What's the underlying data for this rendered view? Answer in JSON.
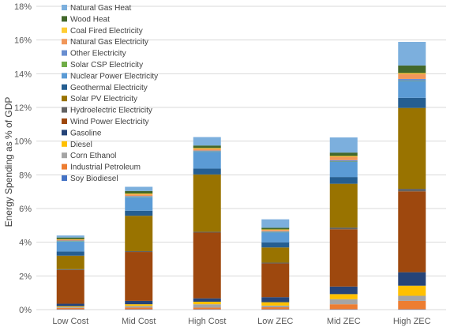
{
  "chart_data": {
    "type": "bar",
    "stacked": true,
    "title": "",
    "xlabel": "",
    "ylabel": "Energy Spending as % of GDP",
    "ylim": [
      0,
      18
    ],
    "yticks": [
      "0%",
      "2%",
      "4%",
      "6%",
      "8%",
      "10%",
      "12%",
      "14%",
      "16%",
      "18%"
    ],
    "grid": true,
    "legend_position": "top-left",
    "categories": [
      "Low Cost",
      "Mid Cost",
      "High Cost",
      "Low ZEC",
      "Mid ZEC",
      "High ZEC"
    ],
    "series": [
      {
        "name": "Soy Biodiesel",
        "color": "#4472C4",
        "values": [
          0.02,
          0.02,
          0.02,
          0.02,
          0.02,
          0.02
        ]
      },
      {
        "name": "Industrial Petroleum",
        "color": "#ED7D31",
        "values": [
          0.08,
          0.1,
          0.1,
          0.12,
          0.3,
          0.5
        ]
      },
      {
        "name": "Corn Ethanol",
        "color": "#A5A5A5",
        "values": [
          0.05,
          0.1,
          0.2,
          0.1,
          0.3,
          0.3
        ]
      },
      {
        "name": "Diesel",
        "color": "#FFC000",
        "values": [
          0.05,
          0.1,
          0.15,
          0.2,
          0.3,
          0.6
        ]
      },
      {
        "name": "Gasoline",
        "color": "#264478",
        "values": [
          0.15,
          0.2,
          0.2,
          0.3,
          0.45,
          0.8
        ]
      },
      {
        "name": "Wind Power Electricity",
        "color": "#9E480E",
        "values": [
          2.0,
          2.9,
          3.9,
          2.0,
          3.4,
          4.8
        ]
      },
      {
        "name": "Hydroelectric Electricity",
        "color": "#636363",
        "values": [
          0.05,
          0.05,
          0.05,
          0.05,
          0.1,
          0.15
        ]
      },
      {
        "name": "Solar PV Electricity",
        "color": "#997300",
        "values": [
          0.8,
          2.1,
          3.4,
          0.9,
          2.6,
          4.8
        ]
      },
      {
        "name": "Geothermal Electricity",
        "color": "#255E91",
        "values": [
          0.25,
          0.3,
          0.35,
          0.3,
          0.4,
          0.6
        ]
      },
      {
        "name": "Nuclear Power Electricity",
        "color": "#5B9BD5",
        "values": [
          0.6,
          0.8,
          1.0,
          0.6,
          0.9,
          1.0
        ]
      },
      {
        "name": "Solar CSP Electricity",
        "color": "#70AD47",
        "values": [
          0.02,
          0.02,
          0.02,
          0.02,
          0.02,
          0.02
        ]
      },
      {
        "name": "Other Electricity",
        "color": "#698ED0",
        "values": [
          0.03,
          0.05,
          0.05,
          0.04,
          0.08,
          0.1
        ]
      },
      {
        "name": "Natural Gas Electricity",
        "color": "#F1975A",
        "values": [
          0.05,
          0.1,
          0.1,
          0.08,
          0.2,
          0.3
        ]
      },
      {
        "name": "Coal Fired Electricity",
        "color": "#FFCD33",
        "values": [
          0.03,
          0.05,
          0.05,
          0.03,
          0.05,
          0.05
        ]
      },
      {
        "name": "Wood Heat",
        "color": "#43682B",
        "values": [
          0.1,
          0.15,
          0.15,
          0.1,
          0.2,
          0.45
        ]
      },
      {
        "name": "Natural Gas Heat",
        "color": "#7CAFDD",
        "values": [
          0.12,
          0.25,
          0.5,
          0.5,
          0.9,
          1.4
        ]
      }
    ]
  }
}
